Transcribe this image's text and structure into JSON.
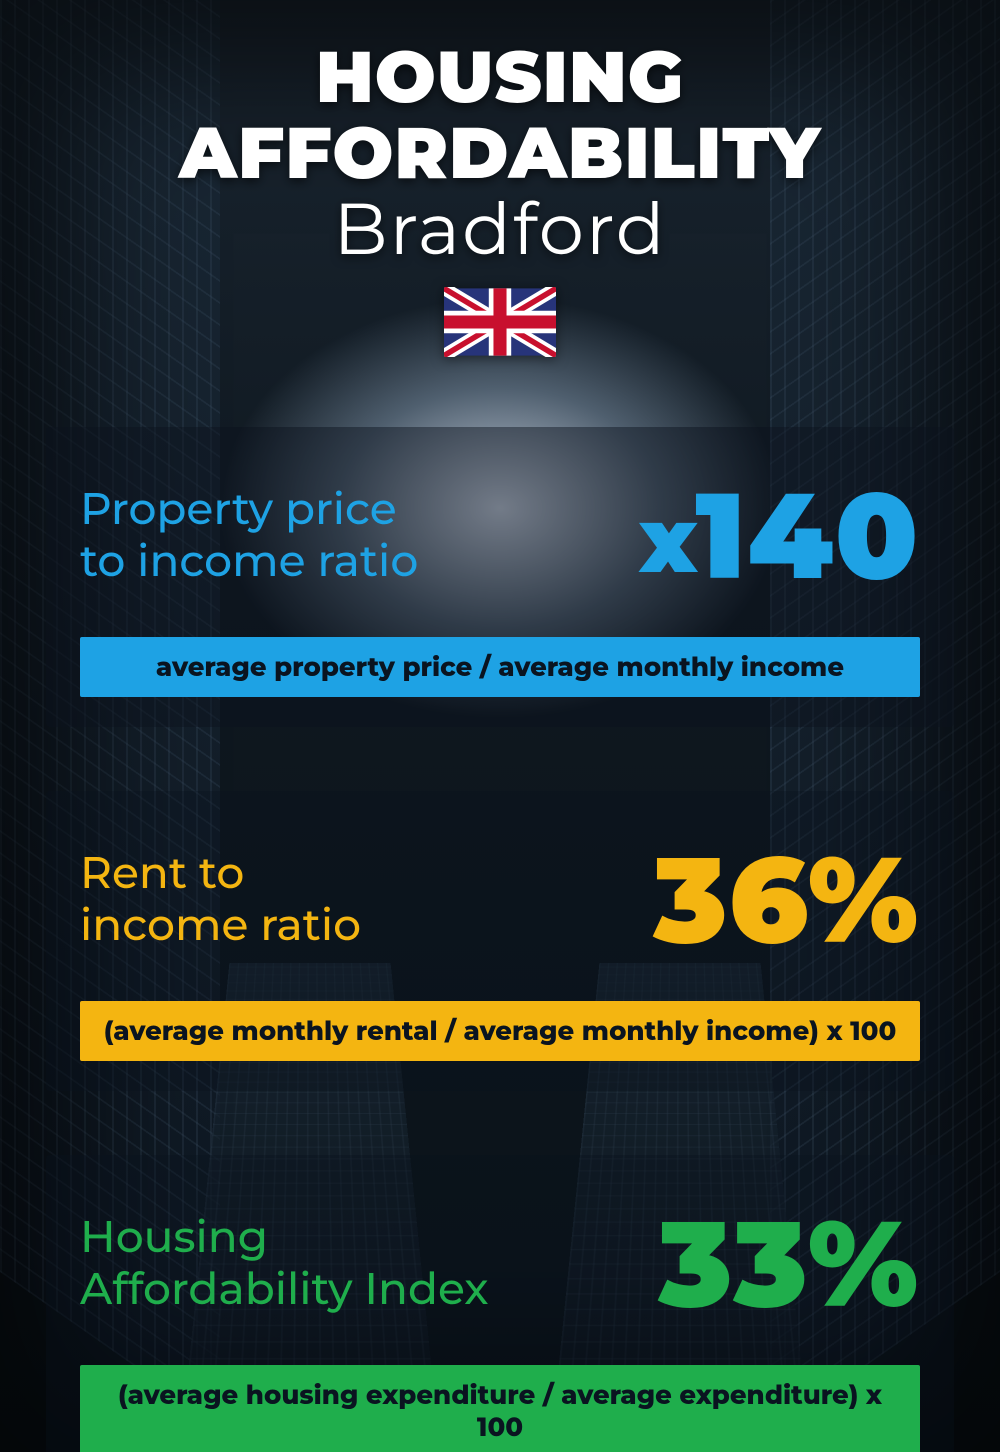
{
  "header": {
    "title": "HOUSING AFFORDABILITY",
    "subtitle": "Bradford",
    "flag": {
      "name": "uk-flag-icon",
      "width": 112,
      "height": 70,
      "colors": {
        "blue": "#27347a",
        "red": "#c8102e",
        "white": "#ffffff"
      }
    },
    "title_color": "#ffffff",
    "title_fontsize": 72,
    "subtitle_fontsize": 72
  },
  "background": {
    "sky_gradient": [
      "#d8e2ee",
      "#7a8ca0",
      "#0f1820"
    ],
    "building_color": "#122230",
    "vignette": "#000000"
  },
  "cards": [
    {
      "key": "property_price_ratio",
      "label": "Property price\nto income ratio",
      "value_prefix": "x",
      "value": "140",
      "formula": "average property price / average monthly income",
      "accent_color": "#1ea2e4",
      "formula_bg": "#1ea2e4",
      "formula_text_color": "#0a1420",
      "card_bg": "rgba(10,18,28,0.45)",
      "label_fontsize": 44,
      "value_fontsize": 120,
      "formula_fontsize": 26
    },
    {
      "key": "rent_income_ratio",
      "label": "Rent to\nincome ratio",
      "value_prefix": "",
      "value": "36%",
      "formula": "(average monthly rental / average monthly income) x 100",
      "accent_color": "#f4b511",
      "formula_bg": "#f4b511",
      "formula_text_color": "#0a1420",
      "card_bg": "rgba(10,18,28,0.35)",
      "label_fontsize": 44,
      "value_fontsize": 120,
      "formula_fontsize": 26
    },
    {
      "key": "affordability_index",
      "label": "Housing\nAffordability Index",
      "value_prefix": "",
      "value": "33%",
      "formula": "(average housing expenditure / average expenditure) x 100",
      "accent_color": "#1fae4c",
      "formula_bg": "#1fae4c",
      "formula_text_color": "#0a1420",
      "card_bg": "rgba(10,18,28,0.35)",
      "label_fontsize": 44,
      "value_fontsize": 120,
      "formula_fontsize": 26
    }
  ]
}
